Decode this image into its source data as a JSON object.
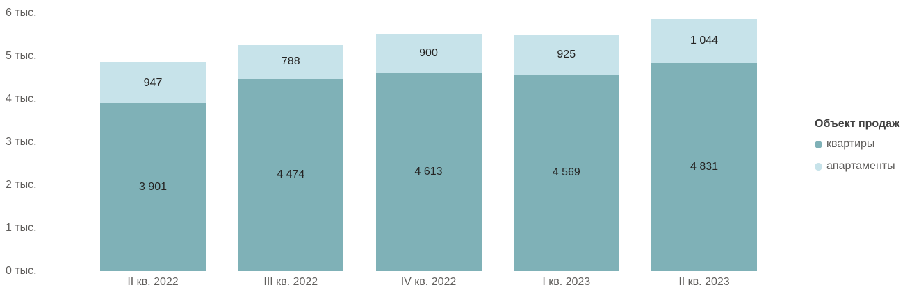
{
  "chart_data": {
    "type": "bar",
    "variant": "stacked-column",
    "title": "",
    "categories": [
      "II кв. 2022",
      "III кв. 2022",
      "IV кв. 2022",
      "I кв. 2023",
      "II кв. 2023"
    ],
    "series": [
      {
        "key": "kvartiry",
        "name": "квартиры",
        "color": "#7fb1b7",
        "values": [
          3901,
          4474,
          4613,
          4569,
          4831
        ],
        "labels": [
          "3 901",
          "4 474",
          "4 613",
          "4 569",
          "4 831"
        ]
      },
      {
        "key": "apartamenty",
        "name": "апартаменты",
        "color": "#c7e3ea",
        "values": [
          947,
          788,
          900,
          925,
          1044
        ],
        "labels": [
          "947",
          "788",
          "900",
          "925",
          "1 044"
        ]
      }
    ],
    "y_axis": {
      "min": 0,
      "max": 6000,
      "tick_labels": [
        "0 тыс.",
        "1 тыс.",
        "2 тыс.",
        "3 тыс.",
        "4 тыс.",
        "5 тыс.",
        "6 тыс."
      ]
    },
    "legend": {
      "title": "Объект продаж",
      "position": "right"
    },
    "grid": false,
    "colors": {
      "value_label": "#252423",
      "axis_label": "#605e5c",
      "legend_title": "#404040",
      "background": "#ffffff"
    }
  }
}
